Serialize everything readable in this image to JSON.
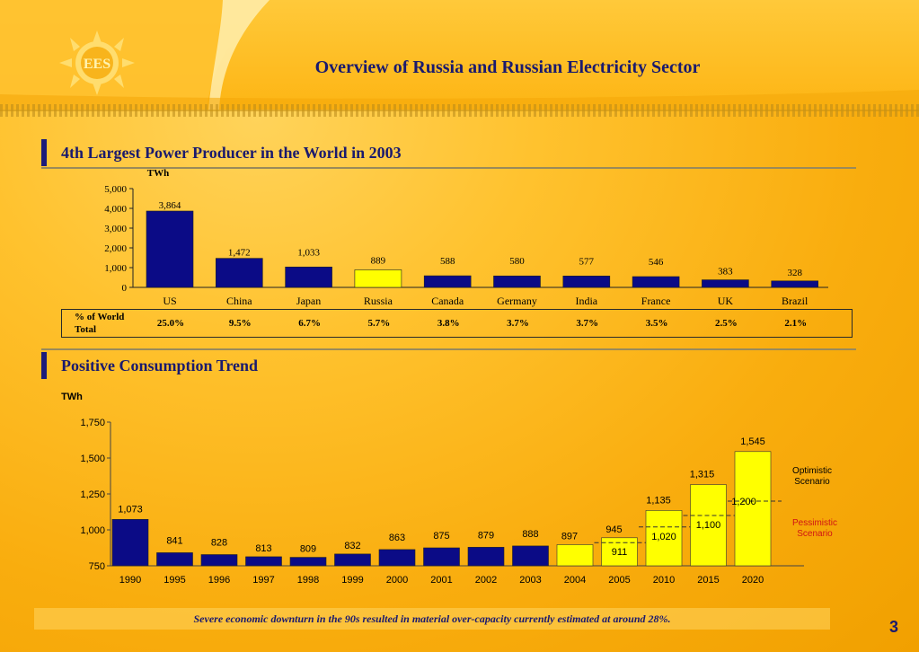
{
  "header": {
    "title": "Overview of Russia and Russian Electricity Sector",
    "logo_text": "EES"
  },
  "section1": {
    "title": "4th Largest Power Producer in the World in 2003"
  },
  "section2": {
    "title": "Positive Consumption Trend"
  },
  "share_table": {
    "label": "% of World Total",
    "values": [
      "25.0%",
      "9.5%",
      "6.7%",
      "5.7%",
      "3.8%",
      "3.7%",
      "3.7%",
      "3.5%",
      "2.5%",
      "2.1%"
    ]
  },
  "colors": {
    "navy": "#0b0b86",
    "yellow": "#ffff00",
    "title": "#1a1a6e",
    "pessimistic": "#d01414"
  },
  "chart_data": [
    {
      "type": "bar",
      "title": "4th Largest Power Producer in the World in 2003",
      "ylabel": "TWh",
      "categories": [
        "US",
        "China",
        "Japan",
        "Russia",
        "Canada",
        "Germany",
        "India",
        "France",
        "UK",
        "Brazil"
      ],
      "values": [
        3864,
        1472,
        1033,
        889,
        588,
        580,
        577,
        546,
        383,
        328
      ],
      "value_labels": [
        "3,864",
        "1,472",
        "1,033",
        "889",
        "588",
        "580",
        "577",
        "546",
        "383",
        "328"
      ],
      "highlight": "Russia",
      "ylim": [
        0,
        5000
      ],
      "yticks": [
        0,
        1000,
        2000,
        3000,
        4000,
        5000
      ],
      "ytick_labels": [
        "0",
        "1,000",
        "2,000",
        "3,000",
        "4,000",
        "5,000"
      ],
      "grid": false
    },
    {
      "type": "bar",
      "title": "Positive Consumption Trend",
      "ylabel": "TWh",
      "categories": [
        "1990",
        "1995",
        "1996",
        "1997",
        "1998",
        "1999",
        "2000",
        "2001",
        "2002",
        "2003",
        "2004",
        "2005",
        "2010",
        "2015",
        "2020"
      ],
      "series": [
        {
          "values": [
            1073,
            841,
            828,
            813,
            809,
            832,
            863,
            875,
            879,
            888,
            null,
            null,
            null,
            null,
            null
          ],
          "value_labels": [
            "1,073",
            "841",
            "828",
            "813",
            "809",
            "832",
            "863",
            "875",
            "879",
            "888",
            "",
            "",
            "",
            "",
            ""
          ]
        },
        {
          "name": "Optimistic Scenario",
          "values": [
            null,
            null,
            null,
            null,
            null,
            null,
            null,
            null,
            null,
            null,
            897,
            945,
            1135,
            1315,
            1545
          ],
          "value_labels": [
            "",
            "",
            "",
            "",
            "",
            "",
            "",
            "",
            "",
            "",
            "897",
            "945",
            "1,135",
            "1,315",
            "1,545"
          ]
        },
        {
          "name": "Pessimistic Scenario",
          "values": [
            null,
            null,
            null,
            null,
            null,
            null,
            null,
            null,
            null,
            null,
            null,
            911,
            1020,
            1100,
            1200
          ],
          "value_labels": [
            "",
            "",
            "",
            "",
            "",
            "",
            "",
            "",
            "",
            "",
            "",
            "911",
            "1,020",
            "1,100",
            "1,200"
          ]
        }
      ],
      "annotations": {
        "optimistic": "Optimistic Scenario",
        "pessimistic": "Pessimistic Scenario"
      },
      "ylim": [
        750,
        1750
      ],
      "yticks": [
        750,
        1000,
        1250,
        1500,
        1750
      ],
      "ytick_labels": [
        "750",
        "1,000",
        "1,250",
        "1,500",
        "1,750"
      ],
      "grid": false
    }
  ],
  "footer": {
    "note": "Severe economic downturn in the 90s resulted in material over-capacity currently estimated at around 28%.",
    "page_number": "3"
  }
}
